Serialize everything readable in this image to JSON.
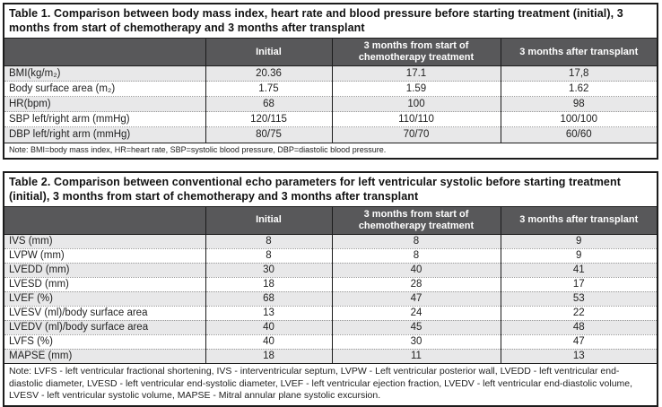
{
  "colors": {
    "header_bg": "#58585a",
    "header_text": "#ffffff",
    "row_alt_bg": "#e8e8e9",
    "border": "#1c1c1c",
    "page_bg": "#ffffff"
  },
  "tables": [
    {
      "title": "Table 1. Comparison between body mass index, heart rate and blood pressure before starting treatment (initial), 3 months from start of chemotherapy and 3 months after transplant",
      "columns": [
        "",
        "Initial",
        "3 months from start of chemotherapy treatment",
        "3 months after transplant"
      ],
      "rows": [
        {
          "label": "BMI(kg/m₂)",
          "values": [
            "20.36",
            "17.1",
            "17,8"
          ]
        },
        {
          "label": "Body surface area (m₂)",
          "values": [
            "1.75",
            "1.59",
            "1.62"
          ]
        },
        {
          "label": "HR(bpm)",
          "values": [
            "68",
            "100",
            "98"
          ]
        },
        {
          "label": "SBP left/right arm (mmHg)",
          "values": [
            "120/115",
            "110/110",
            "100/100"
          ]
        },
        {
          "label": "DBP left/right arm (mmHg)",
          "values": [
            "80/75",
            "70/70",
            "60/60"
          ]
        }
      ],
      "note": "Note: BMI=body mass index, HR=heart rate, SBP=systolic blood pressure, DBP=diastolic blood pressure."
    },
    {
      "title": "Table 2. Comparison between conventional echo parameters for left ventricular systolic before starting treatment (initial), 3 months from start of chemotherapy and 3 months after transplant",
      "columns": [
        "",
        "Initial",
        "3 months from start of chemotherapy treatment",
        "3 months after transplant"
      ],
      "rows": [
        {
          "label": "IVS (mm)",
          "values": [
            "8",
            "8",
            "9"
          ]
        },
        {
          "label": "LVPW (mm)",
          "values": [
            "8",
            "8",
            "9"
          ]
        },
        {
          "label": "LVEDD (mm)",
          "values": [
            "30",
            "40",
            "41"
          ]
        },
        {
          "label": "LVESD (mm)",
          "values": [
            "18",
            "28",
            "17"
          ]
        },
        {
          "label": "LVEF (%)",
          "values": [
            "68",
            "47",
            "53"
          ]
        },
        {
          "label": "LVESV (ml)/body surface area",
          "values": [
            "13",
            "24",
            "22"
          ]
        },
        {
          "label": "LVEDV (ml)/body surface area",
          "values": [
            "40",
            "45",
            "48"
          ]
        },
        {
          "label": "LVFS (%)",
          "values": [
            "40",
            "30",
            "47"
          ]
        },
        {
          "label": "MAPSE (mm)",
          "values": [
            "18",
            "11",
            "13"
          ]
        }
      ],
      "note": "Note: LVFS - left ventricular fractional shortening, IVS - interventricular septum, LVPW - Left ventricular posterior wall, LVEDD - left ventricular end-diastolic diameter, LVESD - left ventricular end-systolic diameter, LVEF - left ventricular ejection fraction, LVEDV - left ventricular end-diastolic volume, LVESV - left ventricular systolic volume, MAPSE - Mitral annular plane systolic excursion."
    }
  ]
}
